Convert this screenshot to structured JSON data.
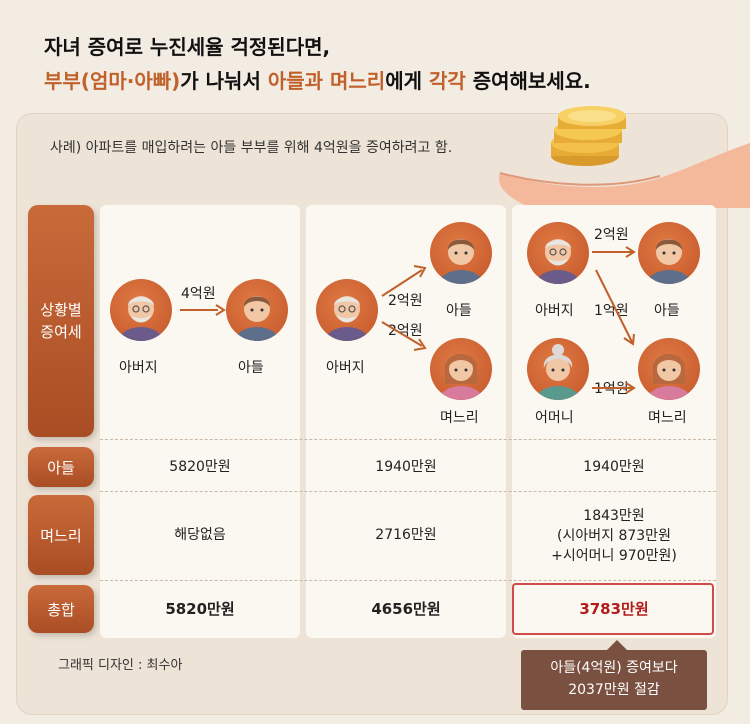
{
  "headline": {
    "line1": "자녀 증여로 누진세율 걱정된다면,",
    "line2_part1": "부부(엄마·아빠)",
    "line2_part2": "가 나눠서 ",
    "line2_part3": "아들과 며느리",
    "line2_part4": "에게 ",
    "line2_part5": "각각",
    "line2_part6": " 증여해보세요."
  },
  "intro": "사례) 아파트를 매입하려는 아들 부부를 위해 4억원을 증여하려고 함.",
  "row_labels": {
    "scenario": "상황별\n증여세",
    "son": "아들",
    "daughter_in_law": "며느리",
    "total": "총합"
  },
  "scenario1": {
    "giver": "아버지",
    "amount": "4억원",
    "receiver": "아들"
  },
  "scenario2": {
    "giver": "아버지",
    "amount1": "2억원",
    "receiver1": "아들",
    "amount2": "2억원",
    "receiver2": "며느리"
  },
  "scenario3": {
    "giver1": "아버지",
    "giver2": "어머니",
    "amount_top": "2억원",
    "amount_mid": "1억원",
    "amount_bottom": "1억원",
    "receiver1": "아들",
    "receiver2": "며느리"
  },
  "table": {
    "son": [
      "5820만원",
      "1940만원",
      "1940만원"
    ],
    "daughter_in_law": [
      "해당없음",
      "2716만원",
      "1843만원"
    ],
    "daughter_in_law_detail_1": "(시아버지 873만원",
    "daughter_in_law_detail_2": "+시어머니 970만원)",
    "total": [
      "5820만원",
      "4656만원",
      "3783만원"
    ]
  },
  "callout": {
    "line1": "아들(4억원) 증여보다",
    "line2": "2037만원 절감"
  },
  "credit": "그래픽 디자인 : 최수아",
  "colors": {
    "accent": "#c0612b",
    "label_bg": "#b65a2d",
    "highlight": "#b31b1b",
    "callout_bg": "#7a5140"
  }
}
